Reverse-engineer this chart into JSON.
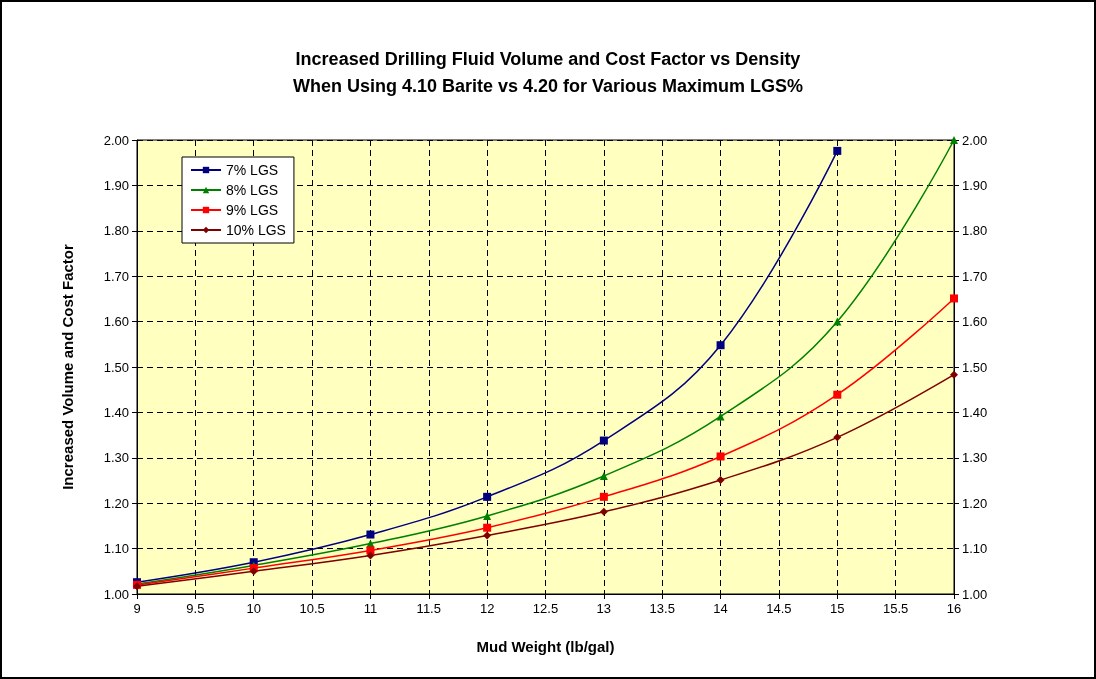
{
  "chart_data": {
    "type": "line",
    "title": "Increased Drilling Fluid Volume and Cost Factor vs Density\nWhen Using 4.10 Barite vs 4.20 for Various Maximum LGS%",
    "xlabel": "Mud Weight (lb/gal)",
    "ylabel": "Increased Volume and Cost Factor",
    "x": [
      9,
      10,
      11,
      12,
      13,
      14,
      15,
      16
    ],
    "series": [
      {
        "name": "7% LGS",
        "color": "#000080",
        "marker": "square",
        "x": [
          9,
          10,
          11,
          12,
          13,
          14,
          15
        ],
        "values": [
          1.026,
          1.07,
          1.131,
          1.214,
          1.338,
          1.548,
          1.976
        ]
      },
      {
        "name": "8% LGS",
        "color": "#008000",
        "marker": "triangle",
        "values": [
          1.022,
          1.063,
          1.111,
          1.172,
          1.26,
          1.391,
          1.6,
          2.0
        ]
      },
      {
        "name": "9% LGS",
        "color": "#ff0000",
        "marker": "square",
        "values": [
          1.02,
          1.057,
          1.096,
          1.146,
          1.214,
          1.303,
          1.439,
          1.651
        ]
      },
      {
        "name": "10% LGS",
        "color": "#800000",
        "marker": "diamond",
        "values": [
          1.017,
          1.05,
          1.085,
          1.129,
          1.181,
          1.251,
          1.345,
          1.483
        ]
      }
    ],
    "xlim": [
      9,
      16
    ],
    "xticks": [
      9,
      9.5,
      10,
      10.5,
      11,
      11.5,
      12,
      12.5,
      13,
      13.5,
      14,
      14.5,
      15,
      15.5,
      16
    ],
    "ylim": [
      1.0,
      2.0
    ],
    "yticks": [
      {
        "value": 1,
        "label": "1.00"
      },
      {
        "value": 1.1,
        "label": "1.10"
      },
      {
        "value": 1.2,
        "label": "1.20"
      },
      {
        "value": 1.3,
        "label": "1.30"
      },
      {
        "value": 1.4,
        "label": "1.40"
      },
      {
        "value": 1.5,
        "label": "1.50"
      },
      {
        "value": 1.6,
        "label": "1.60"
      },
      {
        "value": 1.7,
        "label": "1.70"
      },
      {
        "value": 1.8,
        "label": "1.80"
      },
      {
        "value": 1.9,
        "label": "1.90"
      },
      {
        "value": 2,
        "label": "2.00"
      }
    ],
    "y2lim": [
      1.0,
      2.0
    ],
    "y2ticks": [
      {
        "value": 1,
        "label": "1.00"
      },
      {
        "value": 1.1,
        "label": "1.10"
      },
      {
        "value": 1.2,
        "label": "1.20"
      },
      {
        "value": 1.3,
        "label": "1.30"
      },
      {
        "value": 1.4,
        "label": "1.40"
      },
      {
        "value": 1.5,
        "label": "1.50"
      },
      {
        "value": 1.6,
        "label": "1.60"
      },
      {
        "value": 1.7,
        "label": "1.70"
      },
      {
        "value": 1.8,
        "label": "1.80"
      },
      {
        "value": 1.9,
        "label": "1.90"
      },
      {
        "value": 2,
        "label": "2.00"
      }
    ],
    "grid": true,
    "legend": "top left",
    "line_style": "solid"
  }
}
